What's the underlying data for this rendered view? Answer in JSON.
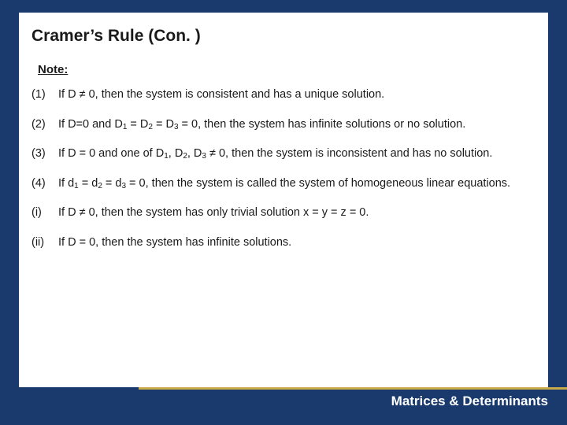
{
  "colors": {
    "frame_bg": "#1a3a6e",
    "panel_bg": "#ffffff",
    "text": "#1a1a1a",
    "accent_gold": "#c9a94a",
    "footer_text": "#ffffff"
  },
  "typography": {
    "title_fontsize_pt": 21,
    "body_fontsize_pt": 14.5,
    "note_fontsize_pt": 15,
    "footer_fontsize_pt": 17,
    "font_family": "Verdana"
  },
  "slide": {
    "title": "Cramer’s Rule (Con. )",
    "note_label": "Note:",
    "footer": "Matrices & Determinants",
    "items": [
      {
        "num": "(1)",
        "html": "If D ≠ 0, then the system is consistent and has a unique solution."
      },
      {
        "num": "(2)",
        "html": "If D=0 and D<sub>1</sub> = D<sub>2</sub> = D<sub>3</sub> = 0, then the system has infinite solutions or no solution."
      },
      {
        "num": "(3)",
        "html": "If D = 0 and one of D<sub>1</sub>, D<sub>2</sub>, D<sub>3</sub> ≠ 0, then the system is inconsistent and has no solution."
      },
      {
        "num": "(4)",
        "html": "If d<sub>1</sub> = d<sub>2</sub> = d<sub>3</sub> = 0, then the system is called the system of homogeneous linear equations."
      },
      {
        "num": "(i)",
        "html": "If D ≠ 0, then the system has only trivial solution x = y = z = 0."
      },
      {
        "num": "(ii)",
        "html": "If D = 0, then the system has infinite solutions."
      }
    ]
  }
}
